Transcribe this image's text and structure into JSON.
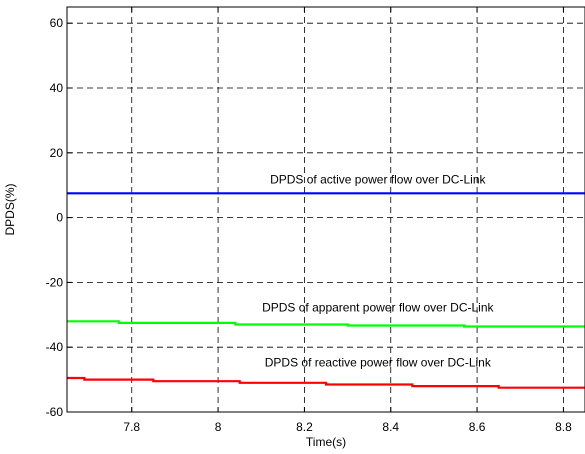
{
  "chart_data": {
    "type": "line",
    "title": "",
    "xlabel": "Time(s)",
    "ylabel": "DPDS(%)",
    "xlim": [
      7.65,
      8.85
    ],
    "ylim": [
      -60,
      65
    ],
    "xticks": [
      7.8,
      8,
      8.2,
      8.4,
      8.6,
      8.8
    ],
    "xtick_labels": [
      "7.8",
      "8",
      "8.2",
      "8.4",
      "8.6",
      "8.8"
    ],
    "yticks": [
      -60,
      -40,
      -20,
      0,
      20,
      40,
      60
    ],
    "ytick_labels": [
      "-60",
      "-40",
      "-20",
      "0",
      "20",
      "40",
      "60"
    ],
    "grid": true,
    "series": [
      {
        "color": "#0000ff",
        "x": [
          7.65,
          8.85
        ],
        "y": [
          7.5,
          7.5
        ]
      },
      {
        "color": "#00ff00",
        "x": [
          7.65,
          7.77,
          7.77,
          8.04,
          8.04,
          8.3,
          8.3,
          8.57,
          8.57,
          8.85
        ],
        "y": [
          -32,
          -32,
          -32.5,
          -32.5,
          -33,
          -33,
          -33.3,
          -33.3,
          -33.6,
          -33.6
        ]
      },
      {
        "color": "#ff0000",
        "x": [
          7.65,
          7.69,
          7.69,
          7.85,
          7.85,
          8.05,
          8.05,
          8.25,
          8.25,
          8.45,
          8.45,
          8.65,
          8.65,
          8.85
        ],
        "y": [
          -49.5,
          -49.5,
          -50,
          -50,
          -50.5,
          -50.5,
          -51,
          -51,
          -51.5,
          -51.5,
          -52,
          -52,
          -52.5,
          -52.5
        ]
      }
    ],
    "annotations": [
      {
        "text": "DPDS of active power flow over DC-Link",
        "x": 8.37,
        "y": 10.5
      },
      {
        "text": "DPDS of apparent power flow over DC-Link",
        "x": 8.37,
        "y": -29
      },
      {
        "text": "DPDS of reactive power flow over DC-Link",
        "x": 8.37,
        "y": -46
      }
    ]
  }
}
